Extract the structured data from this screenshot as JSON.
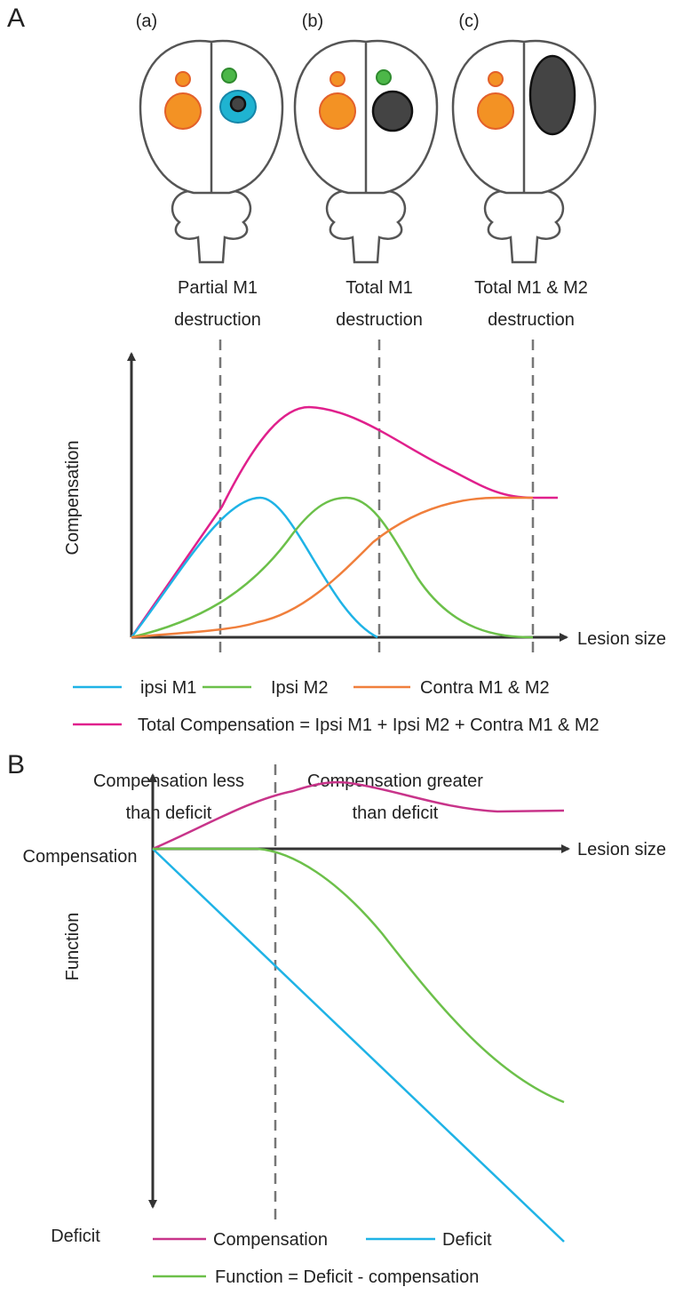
{
  "panel_a": {
    "label": "A",
    "brains": [
      {
        "label": "(a)",
        "caption": [
          "Partial M1",
          "destruction"
        ]
      },
      {
        "label": "(b)",
        "caption": [
          "Total M1",
          "destruction"
        ]
      },
      {
        "label": "(c)",
        "caption": [
          "Total M1 & M2",
          "destruction"
        ]
      }
    ],
    "y_axis": "Compensation",
    "x_axis": "Lesion size",
    "legend": [
      "ipsi M1",
      "Ipsi M2",
      "Contra M1 & M2",
      "Total Compensation = Ipsi M1 + Ipsi M2 + Contra M1 & M2"
    ]
  },
  "panel_b": {
    "label": "B",
    "regions": [
      [
        "Compensation less",
        "than deficit"
      ],
      [
        "Compensation greater",
        "than deficit"
      ]
    ],
    "y_top": "Compensation",
    "y_middle": "Function",
    "y_bottom": "Deficit",
    "x_axis": "Lesion size",
    "legend": [
      "Compensation",
      "Deficit",
      "Function = Deficit - compensation"
    ]
  }
}
